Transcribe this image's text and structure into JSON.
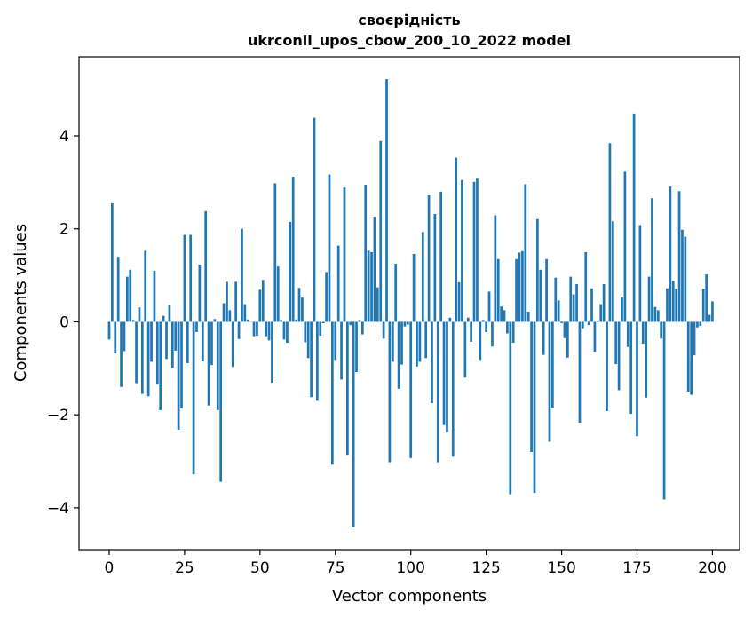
{
  "chart_data": {
    "type": "bar",
    "title_line1": "своєрідність",
    "title_line2": "ukrconll_upos_cbow_200_10_2022 model",
    "xlabel": "Vector components",
    "ylabel": "Components values",
    "xlim": [
      -10,
      209
    ],
    "ylim": [
      -4.9,
      5.7
    ],
    "x_ticks": [
      0,
      25,
      50,
      75,
      100,
      125,
      150,
      175,
      200
    ],
    "x_tick_labels": [
      "0",
      "25",
      "50",
      "75",
      "100",
      "125",
      "150",
      "175",
      "200"
    ],
    "y_ticks": [
      -4,
      -2,
      0,
      2,
      4
    ],
    "y_tick_labels": [
      "−4",
      "−2",
      "0",
      "2",
      "4"
    ],
    "grid": false,
    "bar_color": "#1f77b4",
    "values": [
      -0.38,
      2.55,
      -0.68,
      1.4,
      -1.4,
      -0.63,
      0.97,
      1.12,
      0.04,
      -1.32,
      0.31,
      -1.55,
      1.53,
      -1.6,
      -0.86,
      1.1,
      -1.35,
      -1.9,
      0.13,
      -0.8,
      0.36,
      -0.99,
      -0.62,
      -2.32,
      -1.86,
      1.87,
      -0.89,
      1.87,
      -3.28,
      -0.22,
      1.23,
      -0.85,
      2.38,
      -1.8,
      -0.93,
      0.06,
      -1.9,
      -3.44,
      0.4,
      0.86,
      0.25,
      -0.97,
      0.86,
      -0.37,
      2.0,
      0.38,
      0.05,
      0.0,
      -0.31,
      -0.3,
      0.69,
      0.9,
      -0.31,
      -0.4,
      -1.31,
      2.98,
      1.19,
      0.04,
      -0.38,
      -0.45,
      2.15,
      3.12,
      0.05,
      0.73,
      0.52,
      -0.44,
      -0.78,
      -1.62,
      4.39,
      -1.7,
      -0.3,
      -0.03,
      1.07,
      3.17,
      -3.07,
      -0.82,
      1.64,
      -1.24,
      2.89,
      -2.86,
      -0.07,
      -4.42,
      -1.08,
      0.04,
      -0.27,
      2.95,
      1.53,
      1.5,
      2.26,
      0.74,
      3.89,
      -0.36,
      5.22,
      -3.02,
      -0.86,
      1.25,
      -1.44,
      -0.92,
      -0.1,
      -0.06,
      -2.93,
      1.46,
      -0.96,
      -0.86,
      1.93,
      -0.78,
      2.72,
      -1.75,
      2.32,
      -3.02,
      2.8,
      -2.22,
      -2.37,
      0.09,
      -2.9,
      3.53,
      0.85,
      3.05,
      -1.2,
      0.09,
      -0.43,
      3.01,
      3.08,
      -0.82,
      0.04,
      -0.22,
      0.65,
      -0.53,
      2.29,
      1.35,
      0.33,
      0.25,
      -0.25,
      -3.71,
      -0.45,
      1.35,
      1.49,
      1.52,
      2.96,
      0.22,
      -2.8,
      -3.68,
      2.21,
      1.12,
      -0.71,
      1.35,
      -2.58,
      -1.85,
      0.95,
      0.46,
      -0.03,
      -0.35,
      -0.77,
      0.97,
      0.59,
      0.81,
      -2.17,
      -0.14,
      1.5,
      -0.07,
      0.72,
      -0.64,
      0.03,
      0.38,
      0.81,
      -1.92,
      3.84,
      2.16,
      -0.91,
      -1.47,
      0.53,
      3.23,
      -0.54,
      -1.98,
      4.48,
      -2.46,
      2.08,
      -0.47,
      -1.63,
      0.97,
      2.66,
      0.32,
      0.25,
      -0.36,
      -3.82,
      0.72,
      2.91,
      0.88,
      0.71,
      2.81,
      1.98,
      1.83,
      -1.5,
      -1.57,
      -0.72,
      -0.12,
      -0.09,
      0.71,
      1.02,
      0.15,
      0.44
    ]
  }
}
